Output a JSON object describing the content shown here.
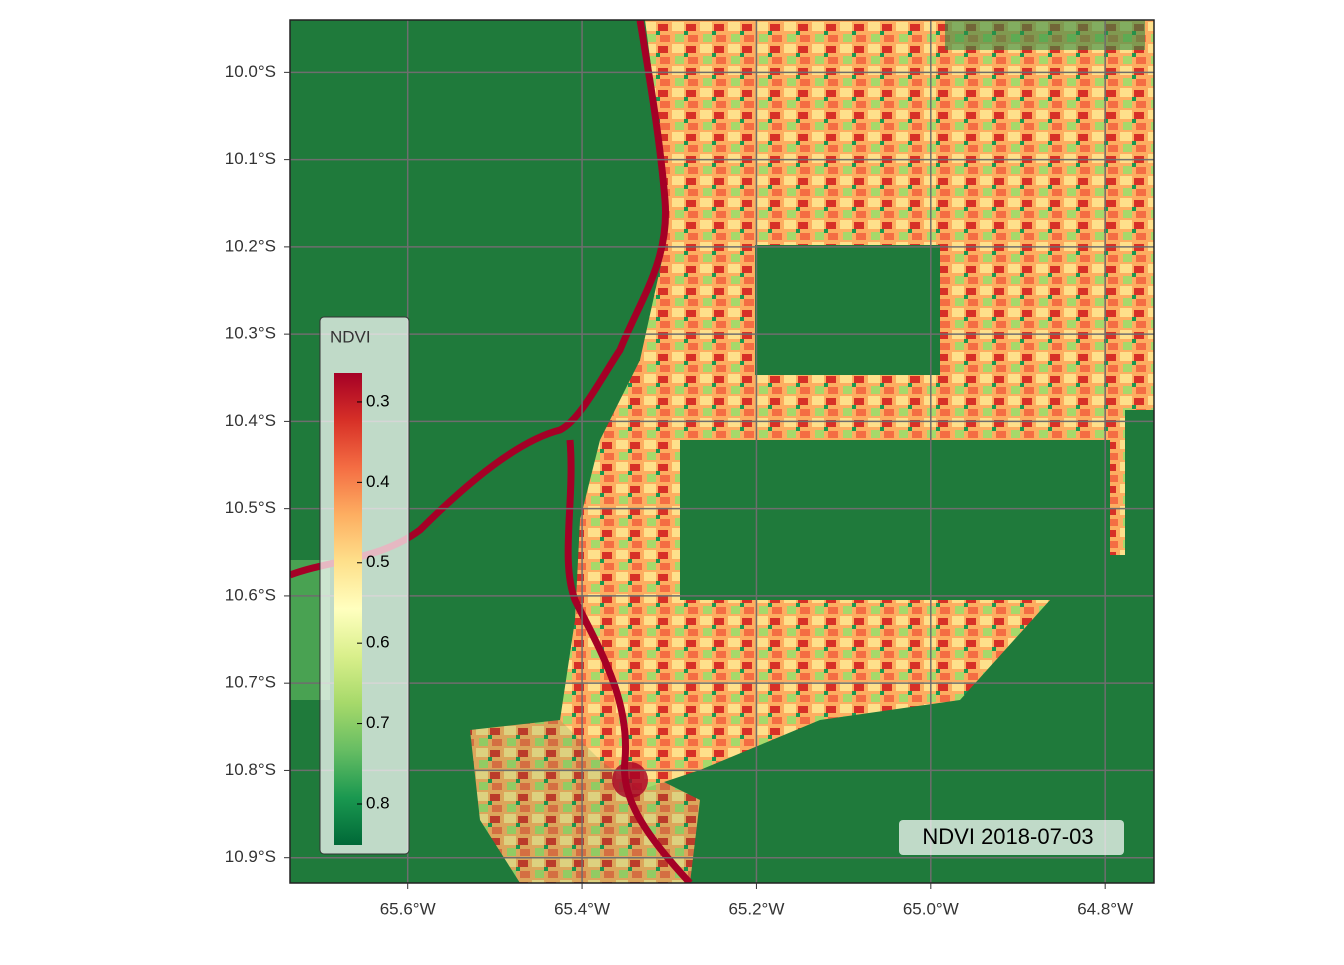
{
  "map": {
    "xlim": [
      -65.735,
      -64.744
    ],
    "ylim": [
      -10.929,
      -9.94
    ],
    "xticks": [
      {
        "value": -65.6,
        "label": "65.6°W"
      },
      {
        "value": -65.4,
        "label": "65.4°W"
      },
      {
        "value": -65.2,
        "label": "65.2°W"
      },
      {
        "value": -65.0,
        "label": "65.0°W"
      },
      {
        "value": -64.8,
        "label": "64.8°W"
      }
    ],
    "yticks": [
      {
        "value": -10.0,
        "label": "10.0°S"
      },
      {
        "value": -10.1,
        "label": "10.1°S"
      },
      {
        "value": -10.2,
        "label": "10.2°S"
      },
      {
        "value": -10.3,
        "label": "10.3°S"
      },
      {
        "value": -10.4,
        "label": "10.4°S"
      },
      {
        "value": -10.5,
        "label": "10.5°S"
      },
      {
        "value": -10.6,
        "label": "10.6°S"
      },
      {
        "value": -10.7,
        "label": "10.7°S"
      },
      {
        "value": -10.8,
        "label": "10.8°S"
      },
      {
        "value": -10.9,
        "label": "10.9°S"
      }
    ],
    "grid": true,
    "legend": {
      "title": "NDVI",
      "lim": [
        0.264,
        0.851
      ],
      "ticks": [
        0.3,
        0.4,
        0.5,
        0.6,
        0.7,
        0.8
      ],
      "colors": [
        "#a50026",
        "#d73027",
        "#f46d43",
        "#fdae61",
        "#fee08b",
        "#ffffbf",
        "#d9ef8b",
        "#a6d96a",
        "#66bd63",
        "#1a9850",
        "#006837"
      ]
    },
    "annotation": "NDVI 2018-07-03"
  }
}
